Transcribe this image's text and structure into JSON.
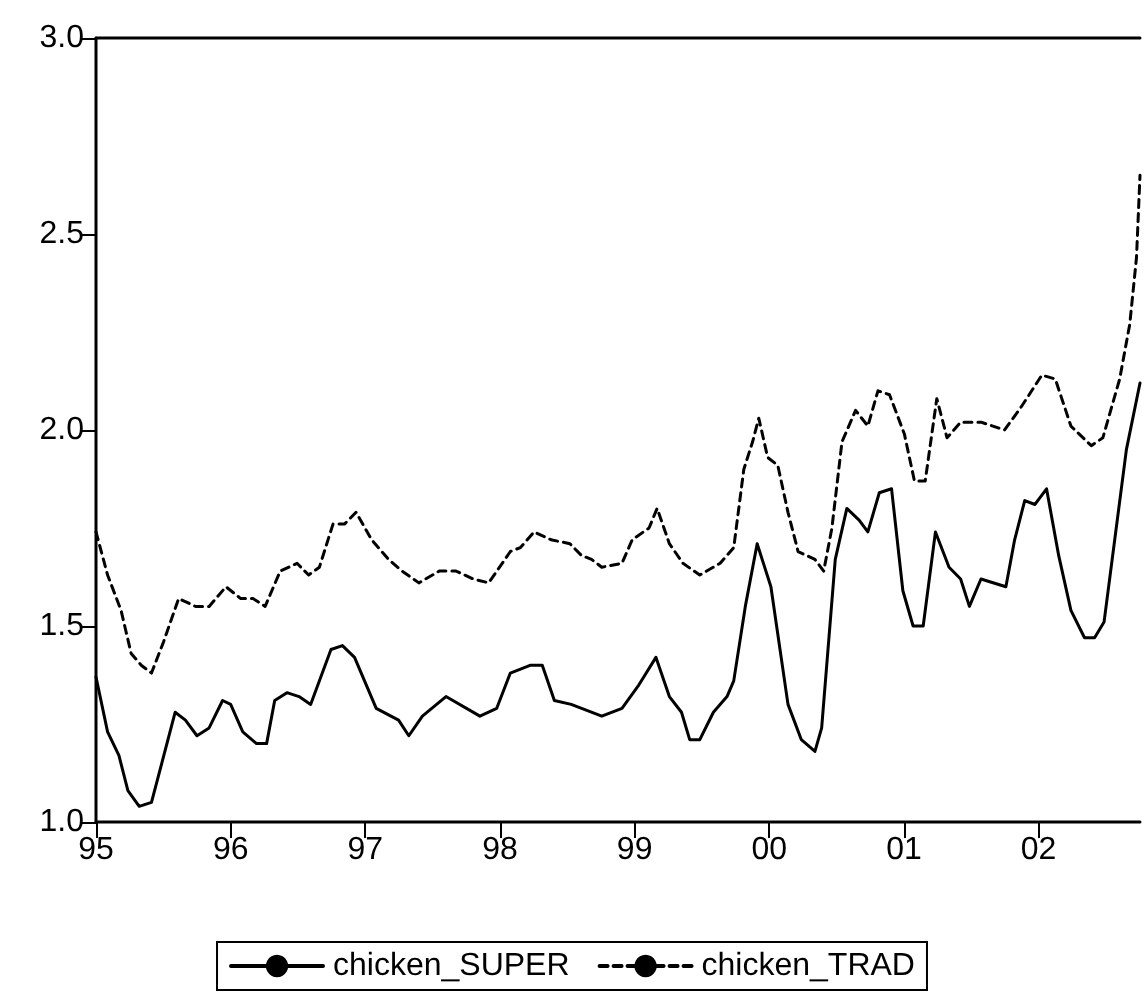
{
  "chart_data": {
    "type": "line",
    "xlim": [
      1995,
      2002.753
    ],
    "xticks": [
      {
        "value": 1995,
        "label": "95"
      },
      {
        "value": 1996,
        "label": "96"
      },
      {
        "value": 1997,
        "label": "97"
      },
      {
        "value": 1998,
        "label": "98"
      },
      {
        "value": 1999,
        "label": "99"
      },
      {
        "value": 2000,
        "label": "00"
      },
      {
        "value": 2001,
        "label": "01"
      },
      {
        "value": 2002,
        "label": "02"
      }
    ],
    "ylim": [
      1,
      3
    ],
    "yticks": [
      {
        "value": 1,
        "label": "1.0"
      },
      {
        "value": 1.5,
        "label": "1.5"
      },
      {
        "value": 2,
        "label": "2.0"
      },
      {
        "value": 2.5,
        "label": "2.5"
      },
      {
        "value": 3,
        "label": "3.0"
      }
    ],
    "grid": false,
    "legend": "bottom",
    "marker": "none",
    "series": [
      {
        "name": "chicken_SUPER",
        "color": "#000000",
        "line_style": "solid",
        "x": [
          1995.0,
          1995.086,
          1995.17,
          1995.237,
          1995.321,
          1995.412,
          1995.588,
          1995.664,
          1995.75,
          1995.84,
          1995.94,
          1996.0,
          1996.09,
          1996.192,
          1996.267,
          1996.327,
          1996.418,
          1996.508,
          1996.594,
          1996.745,
          1996.83,
          1996.92,
          1997.081,
          1997.247,
          1997.323,
          1997.424,
          1997.599,
          1997.851,
          1997.976,
          1998.077,
          1998.228,
          1998.314,
          1998.404,
          1998.529,
          1998.756,
          1998.906,
          1999.032,
          1999.158,
          1999.258,
          1999.348,
          1999.409,
          1999.484,
          1999.585,
          1999.686,
          1999.736,
          1999.822,
          1999.91,
          2000.012,
          2000.139,
          2000.238,
          2000.339,
          2000.389,
          2000.49,
          2000.576,
          2000.667,
          2000.732,
          2000.817,
          2000.908,
          2000.992,
          2001.068,
          2001.143,
          2001.234,
          2001.335,
          2001.421,
          2001.486,
          2001.572,
          2001.757,
          2001.822,
          2001.897,
          2001.973,
          2002.059,
          2002.149,
          2002.24,
          2002.341,
          2002.416,
          2002.486,
          2002.652,
          2002.753
        ],
        "values": [
          1.37,
          1.23,
          1.17,
          1.08,
          1.04,
          1.05,
          1.28,
          1.26,
          1.22,
          1.24,
          1.31,
          1.3,
          1.23,
          1.2,
          1.2,
          1.31,
          1.33,
          1.32,
          1.3,
          1.44,
          1.45,
          1.42,
          1.29,
          1.26,
          1.22,
          1.27,
          1.32,
          1.27,
          1.29,
          1.38,
          1.4,
          1.4,
          1.31,
          1.3,
          1.27,
          1.29,
          1.35,
          1.42,
          1.32,
          1.28,
          1.21,
          1.21,
          1.28,
          1.32,
          1.36,
          1.55,
          1.71,
          1.6,
          1.3,
          1.21,
          1.18,
          1.24,
          1.67,
          1.8,
          1.77,
          1.74,
          1.84,
          1.85,
          1.59,
          1.5,
          1.5,
          1.74,
          1.65,
          1.62,
          1.55,
          1.62,
          1.6,
          1.72,
          1.82,
          1.81,
          1.85,
          1.68,
          1.54,
          1.47,
          1.47,
          1.51,
          1.95,
          2.12
        ]
      },
      {
        "name": "chicken_TRAD",
        "color": "#000000",
        "line_style": "dashed",
        "x": [
          1995.0,
          1995.086,
          1995.186,
          1995.261,
          1995.336,
          1995.412,
          1995.502,
          1995.614,
          1995.739,
          1995.84,
          1995.965,
          1996.075,
          1996.166,
          1996.256,
          1996.368,
          1996.493,
          1996.579,
          1996.659,
          1996.76,
          1996.845,
          1996.931,
          1997.047,
          1997.172,
          1997.273,
          1997.398,
          1997.549,
          1997.674,
          1997.801,
          1997.916,
          1998.077,
          1998.152,
          1998.253,
          1998.379,
          1998.519,
          1998.605,
          1998.68,
          1998.756,
          1998.906,
          1998.982,
          1999.107,
          1999.167,
          1999.258,
          1999.359,
          1999.484,
          1999.635,
          1999.736,
          1999.811,
          1999.876,
          1999.922,
          1999.988,
          2000.063,
          2000.139,
          2000.214,
          2000.339,
          2000.404,
          2000.465,
          2000.54,
          2000.641,
          2000.732,
          2000.807,
          2000.893,
          2001.003,
          2001.078,
          2001.158,
          2001.244,
          2001.32,
          2001.421,
          2001.572,
          2001.747,
          2001.873,
          2002.024,
          2002.124,
          2002.24,
          2002.391,
          2002.477,
          2002.602,
          2002.677,
          2002.727,
          2002.753
        ],
        "values": [
          1.74,
          1.63,
          1.54,
          1.43,
          1.4,
          1.38,
          1.46,
          1.57,
          1.55,
          1.55,
          1.6,
          1.57,
          1.57,
          1.55,
          1.64,
          1.66,
          1.63,
          1.65,
          1.76,
          1.76,
          1.79,
          1.72,
          1.67,
          1.64,
          1.61,
          1.64,
          1.64,
          1.62,
          1.61,
          1.69,
          1.7,
          1.74,
          1.72,
          1.71,
          1.68,
          1.67,
          1.65,
          1.66,
          1.72,
          1.75,
          1.8,
          1.71,
          1.66,
          1.63,
          1.66,
          1.7,
          1.9,
          1.97,
          2.03,
          1.93,
          1.91,
          1.79,
          1.69,
          1.67,
          1.64,
          1.75,
          1.97,
          2.05,
          2.01,
          2.1,
          2.09,
          1.99,
          1.87,
          1.87,
          2.08,
          1.98,
          2.02,
          2.02,
          2.0,
          2.06,
          2.14,
          2.13,
          2.01,
          1.96,
          1.98,
          2.13,
          2.27,
          2.44,
          2.65
        ]
      }
    ]
  }
}
